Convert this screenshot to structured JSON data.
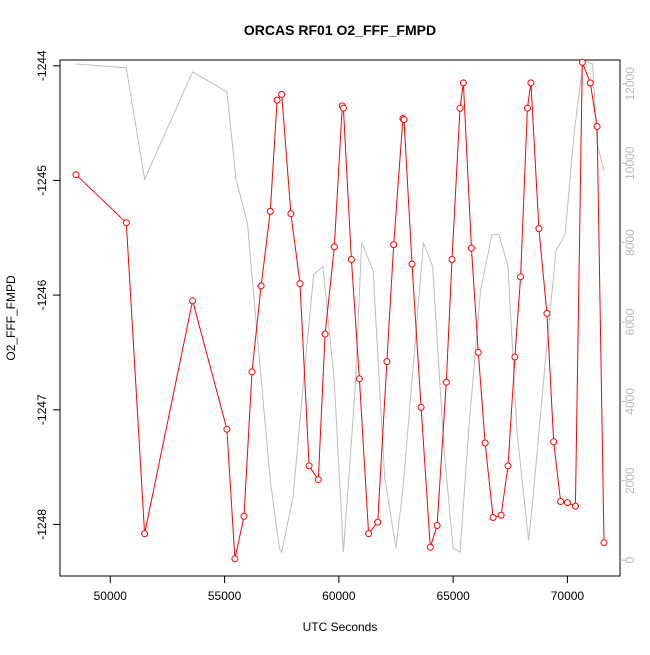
{
  "chart_data": {
    "type": "line",
    "title": "ORCAS RF01 O2_FFF_FMPD",
    "xlabel": "UTC Seconds",
    "ylabel": "O2_FFF_FMPD",
    "xlim": [
      47800,
      72300
    ],
    "ylim": [
      -1248.45,
      -1243.95
    ],
    "y2lim": [
      -400,
      12600
    ],
    "x_ticks": [
      50000,
      55000,
      60000,
      65000,
      70000
    ],
    "x_tick_labels": [
      "50000",
      "55000",
      "60000",
      "65000",
      "70000"
    ],
    "y_ticks": [
      -1248,
      -1247,
      -1246,
      -1245,
      -1244
    ],
    "y_tick_labels": [
      "-1248",
      "-1247",
      "-1246",
      "-1245",
      "-1244"
    ],
    "y2_ticks": [
      0,
      2000,
      4000,
      6000,
      8000,
      10000,
      12000
    ],
    "y2_tick_labels": [
      "0",
      "2000",
      "4000",
      "6000",
      "8000",
      "10000",
      "12000"
    ],
    "colors": {
      "primary": "#ff0000",
      "secondary": "#bebebe",
      "axis": "#000000",
      "right_axis_text": "#b8b8b8"
    },
    "grid": false,
    "series": [
      {
        "axis": "left",
        "style": "line+points",
        "color": "#ff0000",
        "points": [
          [
            48500,
            -1244.95
          ],
          [
            50700,
            -1245.37
          ],
          [
            51500,
            -1248.08
          ],
          [
            53600,
            -1246.05
          ],
          [
            55100,
            -1247.17
          ],
          [
            55450,
            -1248.3
          ],
          [
            55850,
            -1247.93
          ],
          [
            56200,
            -1246.67
          ],
          [
            56600,
            -1245.92
          ],
          [
            57000,
            -1245.27
          ],
          [
            57300,
            -1244.3
          ],
          [
            57500,
            -1244.25
          ],
          [
            57900,
            -1245.29
          ],
          [
            58300,
            -1245.9
          ],
          [
            58700,
            -1247.49
          ],
          [
            59100,
            -1247.61
          ],
          [
            59400,
            -1246.34
          ],
          [
            59800,
            -1245.58
          ],
          [
            60150,
            -1244.35
          ],
          [
            60200,
            -1244.37
          ],
          [
            60550,
            -1245.69
          ],
          [
            60900,
            -1246.73
          ],
          [
            61300,
            -1248.08
          ],
          [
            61700,
            -1247.98
          ],
          [
            62100,
            -1246.58
          ],
          [
            62400,
            -1245.56
          ],
          [
            62800,
            -1244.46
          ],
          [
            62850,
            -1244.47
          ],
          [
            63200,
            -1245.73
          ],
          [
            63600,
            -1246.98
          ],
          [
            64000,
            -1248.2
          ],
          [
            64300,
            -1248.01
          ],
          [
            64700,
            -1246.76
          ],
          [
            64950,
            -1245.69
          ],
          [
            65300,
            -1244.37
          ],
          [
            65450,
            -1244.15
          ],
          [
            65800,
            -1245.59
          ],
          [
            66100,
            -1246.5
          ],
          [
            66400,
            -1247.29
          ],
          [
            66750,
            -1247.94
          ],
          [
            67100,
            -1247.92
          ],
          [
            67400,
            -1247.49
          ],
          [
            67700,
            -1246.54
          ],
          [
            67950,
            -1245.84
          ],
          [
            68250,
            -1244.37
          ],
          [
            68400,
            -1244.15
          ],
          [
            68750,
            -1245.42
          ],
          [
            69100,
            -1246.16
          ],
          [
            69400,
            -1247.28
          ],
          [
            69700,
            -1247.8
          ],
          [
            70000,
            -1247.81
          ],
          [
            70350,
            -1247.84
          ],
          [
            70650,
            -1243.97
          ],
          [
            71000,
            -1244.15
          ],
          [
            71300,
            -1244.53
          ],
          [
            71600,
            -1248.16
          ]
        ]
      },
      {
        "axis": "right",
        "style": "line",
        "color": "#bebebe",
        "points": [
          [
            48500,
            12500
          ],
          [
            50700,
            12400
          ],
          [
            51500,
            9600
          ],
          [
            53600,
            12300
          ],
          [
            55100,
            11800
          ],
          [
            55500,
            9600
          ],
          [
            56000,
            8500
          ],
          [
            56500,
            5200
          ],
          [
            57000,
            2000
          ],
          [
            57400,
            300
          ],
          [
            57500,
            200
          ],
          [
            58000,
            1600
          ],
          [
            58500,
            4800
          ],
          [
            58900,
            7200
          ],
          [
            59300,
            7400
          ],
          [
            59800,
            4500
          ],
          [
            60200,
            200
          ],
          [
            60700,
            4200
          ],
          [
            61000,
            8000
          ],
          [
            61500,
            7300
          ],
          [
            62000,
            2100
          ],
          [
            62500,
            300
          ],
          [
            62800,
            1800
          ],
          [
            63300,
            5200
          ],
          [
            63700,
            8000
          ],
          [
            64100,
            7400
          ],
          [
            64600,
            2800
          ],
          [
            65000,
            300
          ],
          [
            65300,
            200
          ],
          [
            65700,
            3400
          ],
          [
            66200,
            6800
          ],
          [
            66700,
            8200
          ],
          [
            67000,
            8200
          ],
          [
            67400,
            7400
          ],
          [
            67800,
            3200
          ],
          [
            68300,
            500
          ],
          [
            68500,
            1600
          ],
          [
            69000,
            4800
          ],
          [
            69500,
            7800
          ],
          [
            69900,
            8200
          ],
          [
            70300,
            10800
          ],
          [
            70700,
            12600
          ],
          [
            71100,
            12500
          ],
          [
            71300,
            10500
          ],
          [
            71600,
            9800
          ]
        ]
      }
    ]
  }
}
